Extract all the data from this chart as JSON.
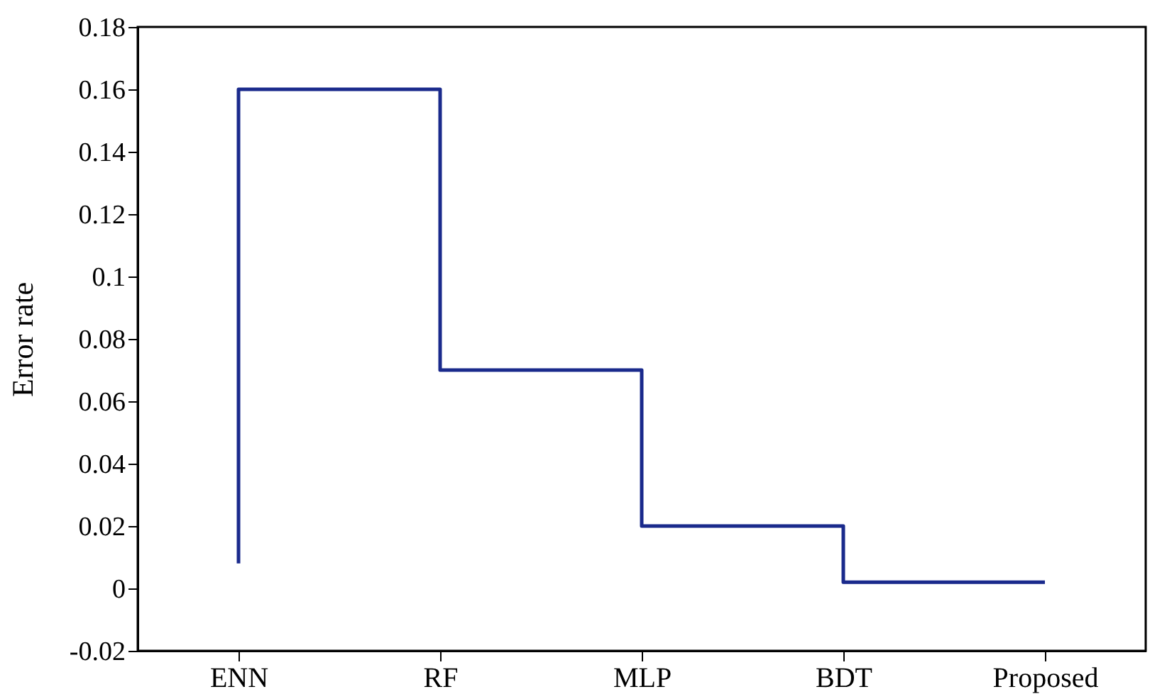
{
  "chart_data": {
    "type": "step",
    "ylabel": "Error rate",
    "categories": [
      "ENN",
      "RF",
      "MLP",
      "BDT",
      "Proposed"
    ],
    "series": [
      {
        "color": "#1a2a8c",
        "values": [
          0.008,
          0.16,
          0.07,
          0.02,
          0.002
        ]
      }
    ],
    "ylim": [
      -0.02,
      0.18
    ],
    "yticks": [
      -0.02,
      0,
      0.02,
      0.04,
      0.06,
      0.08,
      0.1,
      0.12,
      0.14,
      0.16,
      0.18
    ],
    "grid": false,
    "marker": "none",
    "line_style": "solid"
  }
}
